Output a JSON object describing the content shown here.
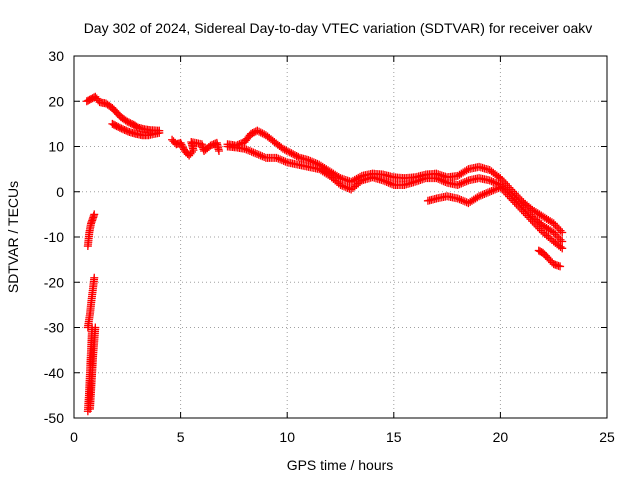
{
  "chart_data": {
    "type": "scatter",
    "title": "Day 302 of 2024, Sidereal Day-to-day VTEC variation (SDTVAR) for receiver oakv",
    "xlabel": "GPS time / hours",
    "ylabel": "SDTVAR / TECUs",
    "xlim": [
      0,
      25
    ],
    "ylim": [
      -50,
      30
    ],
    "xticks": [
      0,
      5,
      10,
      15,
      20,
      25
    ],
    "yticks": [
      -50,
      -40,
      -30,
      -20,
      -10,
      0,
      10,
      20,
      30
    ],
    "grid": true,
    "marker": "plus",
    "color": "#ff0000",
    "series": [
      {
        "name": "steep-1",
        "points": [
          [
            0.65,
            -12
          ],
          [
            0.72,
            -9
          ],
          [
            0.8,
            -7
          ],
          [
            0.88,
            -6
          ],
          [
            0.95,
            -5
          ]
        ]
      },
      {
        "name": "steep-2",
        "points": [
          [
            0.65,
            -48.5
          ],
          [
            0.7,
            -45
          ],
          [
            0.75,
            -40
          ],
          [
            0.8,
            -35
          ],
          [
            0.85,
            -30
          ]
        ]
      },
      {
        "name": "steep-3",
        "points": [
          [
            0.65,
            -30
          ],
          [
            0.75,
            -27
          ],
          [
            0.82,
            -24
          ],
          [
            0.9,
            -21
          ],
          [
            0.95,
            -19
          ]
        ]
      },
      {
        "name": "steep-4",
        "points": [
          [
            0.75,
            -48
          ],
          [
            0.8,
            -44
          ],
          [
            0.85,
            -40
          ],
          [
            0.9,
            -36
          ],
          [
            0.95,
            -33
          ],
          [
            1.0,
            -30
          ]
        ]
      },
      {
        "name": "early-a",
        "points": [
          [
            0.6,
            20
          ],
          [
            0.8,
            20.5
          ],
          [
            1.0,
            21
          ],
          [
            1.2,
            19.8
          ],
          [
            1.5,
            19.5
          ],
          [
            1.8,
            18.5
          ],
          [
            2.0,
            17.5
          ],
          [
            2.2,
            16.5
          ],
          [
            2.5,
            15.5
          ],
          [
            2.8,
            14.8
          ],
          [
            3.0,
            14.2
          ],
          [
            3.3,
            13.8
          ],
          [
            3.6,
            13.6
          ],
          [
            4.0,
            13.5
          ]
        ]
      },
      {
        "name": "early-b",
        "points": [
          [
            1.8,
            15
          ],
          [
            2.0,
            14.5
          ],
          [
            2.3,
            13.8
          ],
          [
            2.6,
            13.2
          ],
          [
            2.9,
            12.8
          ],
          [
            3.2,
            12.5
          ],
          [
            3.5,
            12.5
          ],
          [
            4.0,
            13
          ]
        ]
      },
      {
        "name": "midday-patches",
        "points": [
          [
            4.6,
            11.5
          ],
          [
            4.8,
            10.5
          ],
          [
            5.0,
            10.8
          ],
          [
            5.2,
            9
          ],
          [
            5.4,
            8
          ],
          [
            5.6,
            9.2
          ],
          [
            5.5,
            11
          ],
          [
            6.0,
            10.5
          ],
          [
            6.1,
            9
          ],
          [
            6.4,
            10.2
          ],
          [
            6.7,
            10.8
          ],
          [
            6.8,
            9
          ]
        ]
      },
      {
        "name": "mid-a",
        "points": [
          [
            7.2,
            10.5
          ],
          [
            7.6,
            10.2
          ],
          [
            8.0,
            11
          ],
          [
            8.3,
            12.8
          ],
          [
            8.6,
            13.5
          ],
          [
            9.0,
            12.5
          ],
          [
            9.4,
            11
          ],
          [
            9.8,
            9.5
          ],
          [
            10.2,
            8.5
          ],
          [
            10.6,
            7.5
          ],
          [
            11.0,
            7
          ],
          [
            11.5,
            6
          ],
          [
            12.0,
            4.5
          ],
          [
            12.5,
            3
          ],
          [
            13.0,
            2.2
          ],
          [
            13.5,
            3.5
          ],
          [
            14.0,
            4
          ],
          [
            14.5,
            3.8
          ],
          [
            15.0,
            3.2
          ],
          [
            15.5,
            3
          ],
          [
            16.0,
            3.2
          ],
          [
            16.5,
            3.8
          ],
          [
            17.0,
            4
          ],
          [
            17.5,
            3.2
          ],
          [
            18.0,
            3.5
          ],
          [
            18.5,
            5
          ],
          [
            19.0,
            5.5
          ],
          [
            19.5,
            4.8
          ],
          [
            20.0,
            3
          ],
          [
            20.5,
            0.5
          ],
          [
            21.0,
            -2
          ],
          [
            21.5,
            -4
          ],
          [
            22.0,
            -5.5
          ],
          [
            22.5,
            -7
          ],
          [
            22.9,
            -9
          ]
        ]
      },
      {
        "name": "mid-b",
        "points": [
          [
            7.2,
            10
          ],
          [
            7.6,
            9.8
          ],
          [
            8.0,
            9.5
          ],
          [
            8.5,
            8.5
          ],
          [
            9.0,
            7.5
          ],
          [
            9.5,
            7.5
          ],
          [
            10.0,
            6.5
          ],
          [
            10.5,
            6
          ],
          [
            11.0,
            5.5
          ],
          [
            11.5,
            5
          ],
          [
            12.0,
            3.5
          ],
          [
            12.5,
            1.5
          ],
          [
            13.0,
            0.5
          ],
          [
            13.5,
            2.5
          ],
          [
            14.0,
            3.2
          ],
          [
            14.5,
            2.5
          ],
          [
            15.0,
            1.5
          ],
          [
            15.5,
            1.5
          ],
          [
            16.0,
            2.2
          ],
          [
            16.5,
            3
          ],
          [
            17.0,
            3
          ],
          [
            17.5,
            2
          ],
          [
            18.0,
            1.5
          ],
          [
            18.5,
            2.5
          ],
          [
            19.0,
            3
          ],
          [
            19.5,
            2.5
          ],
          [
            20.0,
            1.5
          ],
          [
            20.5,
            -0.5
          ],
          [
            21.0,
            -3
          ],
          [
            21.5,
            -5.5
          ],
          [
            22.0,
            -7.5
          ],
          [
            22.5,
            -9
          ],
          [
            22.9,
            -11
          ]
        ]
      },
      {
        "name": "late-lower",
        "points": [
          [
            16.6,
            -2
          ],
          [
            17.0,
            -1.5
          ],
          [
            17.5,
            -1
          ],
          [
            18.0,
            -1.5
          ],
          [
            18.5,
            -2.5
          ],
          [
            19.0,
            -1
          ],
          [
            19.5,
            0
          ],
          [
            20.0,
            1
          ],
          [
            20.5,
            -1.5
          ],
          [
            21.0,
            -4
          ],
          [
            21.5,
            -6.5
          ],
          [
            22.0,
            -9
          ],
          [
            22.5,
            -11
          ],
          [
            22.9,
            -12.5
          ]
        ]
      },
      {
        "name": "late-tail",
        "points": [
          [
            21.8,
            -13
          ],
          [
            22.0,
            -13.5
          ],
          [
            22.2,
            -14.5
          ],
          [
            22.5,
            -16
          ],
          [
            22.8,
            -16.5
          ]
        ]
      }
    ]
  }
}
